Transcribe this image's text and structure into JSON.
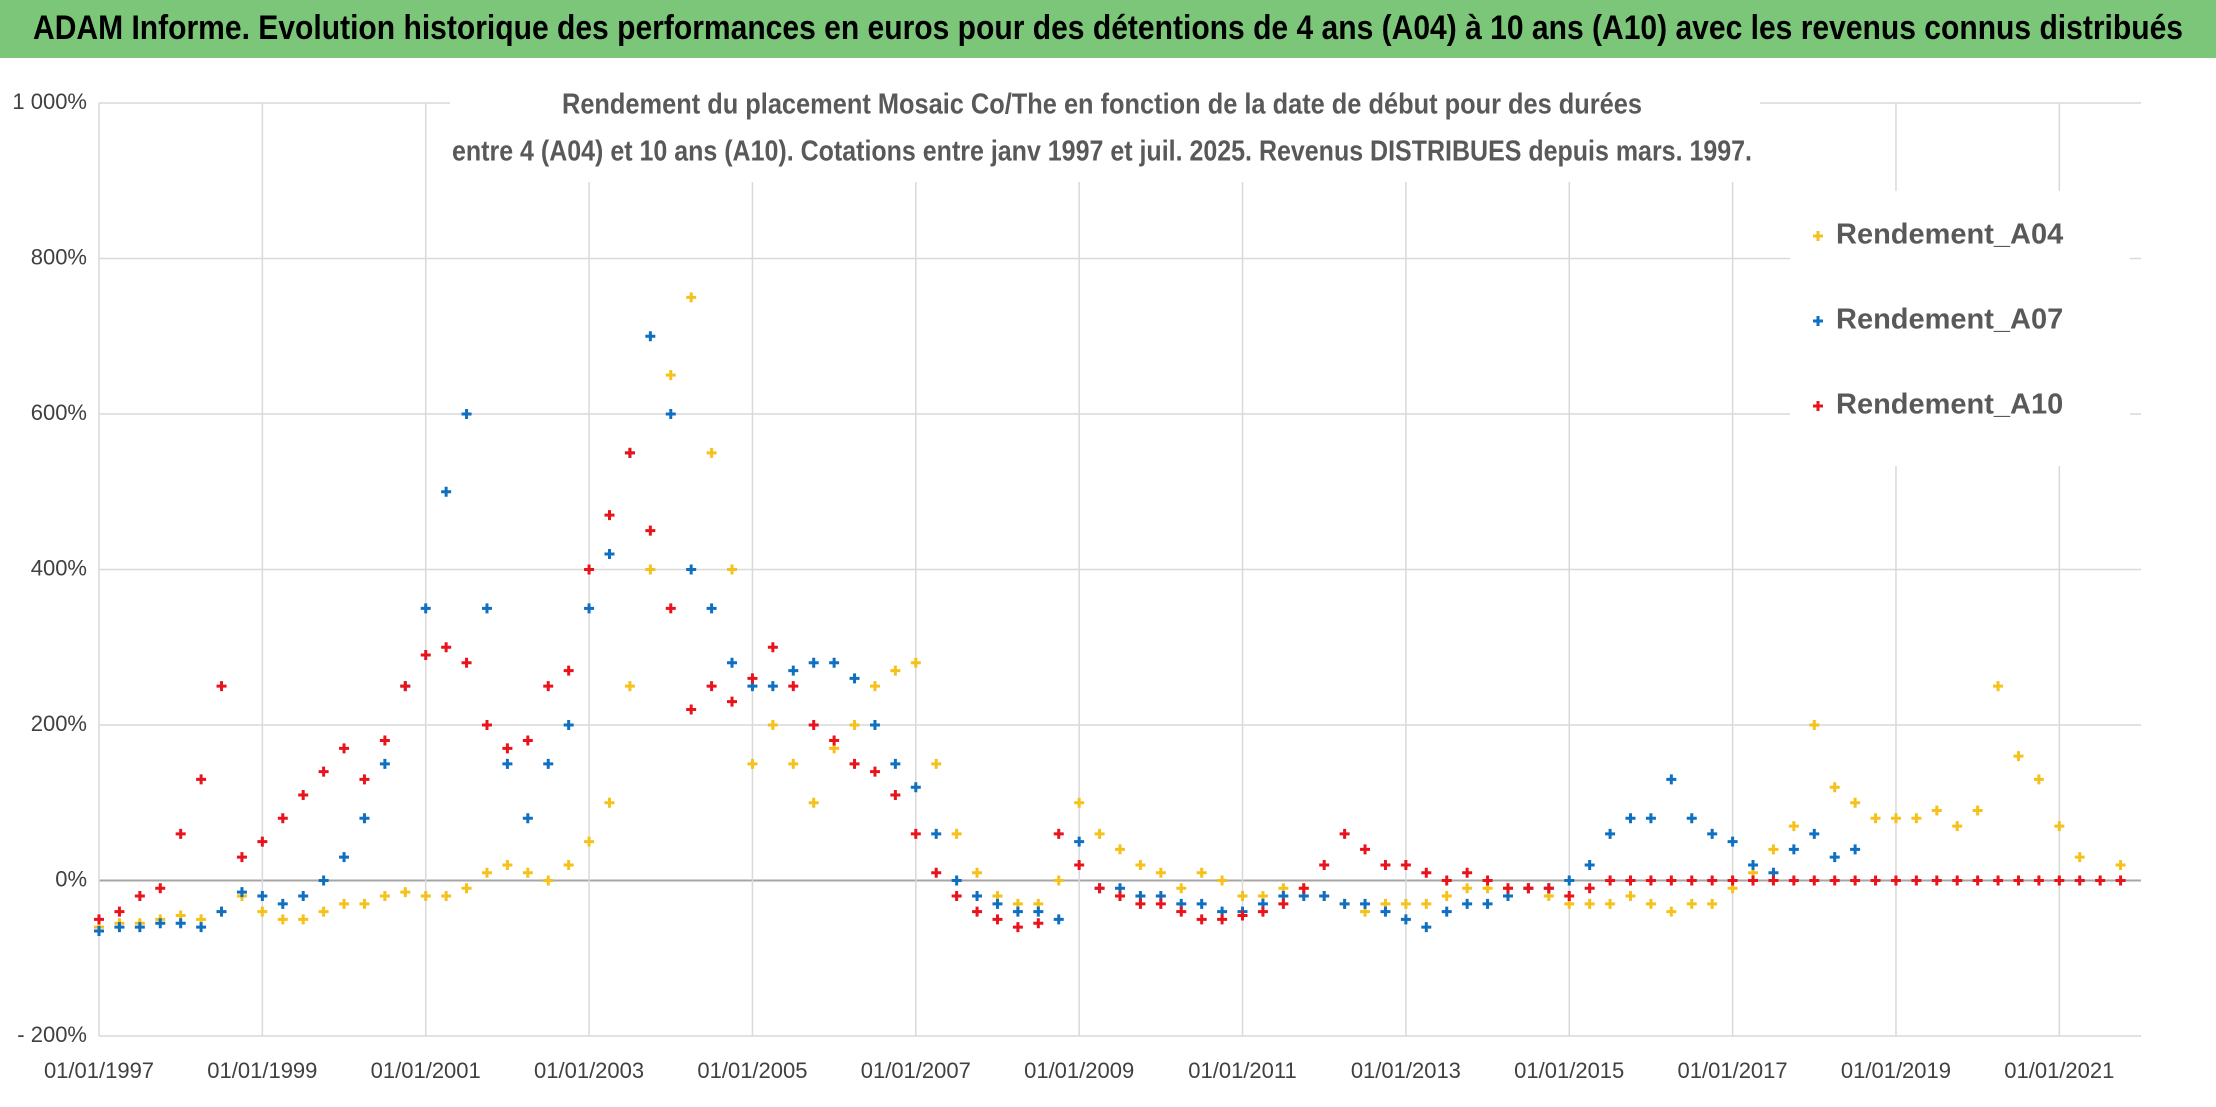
{
  "chart_data": {
    "type": "scatter",
    "title": "ADAM Informe. Evolution historique des performances en euros pour des détentions de 4 ans (A04) à 10 ans (A10) avec les revenus connus distribués",
    "subtitle": [
      "Rendement du placement Mosaic Co/The en fonction de la date de début pour des durées",
      "entre 4 (A04) et 10 ans (A10). Cotations entre janv 1997 et juil. 2025. Revenus DISTRIBUES depuis mars. 1997."
    ],
    "xlim": [
      "01/01/1997",
      "01/01/2022"
    ],
    "xticks": [
      "01/01/1997",
      "01/01/1999",
      "01/01/2001",
      "01/01/2003",
      "01/01/2005",
      "01/01/2007",
      "01/01/2009",
      "01/01/2011",
      "01/01/2013",
      "01/01/2015",
      "01/01/2017",
      "01/01/2019",
      "01/01/2021"
    ],
    "ylim": [
      -200,
      1000
    ],
    "yticks": [
      {
        "value": -200,
        "label": "- 200%"
      },
      {
        "value": 0,
        "label": "0%"
      },
      {
        "value": 200,
        "label": "200%"
      },
      {
        "value": 400,
        "label": "400%"
      },
      {
        "value": 600,
        "label": "600%"
      },
      {
        "value": 800,
        "label": "800%"
      },
      {
        "value": 1000,
        "label": "1 000%"
      }
    ],
    "grid": true,
    "legend": "upper right",
    "series": [
      {
        "name": "Rendement_A04",
        "color": "#f5c21b",
        "x": [
          "01/01/1997",
          "01/04/1997",
          "01/07/1997",
          "01/10/1997",
          "01/01/1998",
          "01/04/1998",
          "01/07/1998",
          "01/10/1998",
          "01/01/1999",
          "01/04/1999",
          "01/07/1999",
          "01/10/1999",
          "01/01/2000",
          "01/04/2000",
          "01/07/2000",
          "01/10/2000",
          "01/01/2001",
          "01/04/2001",
          "01/07/2001",
          "01/10/2001",
          "01/01/2002",
          "01/04/2002",
          "01/07/2002",
          "01/10/2002",
          "01/01/2003",
          "01/04/2003",
          "01/07/2003",
          "01/10/2003",
          "01/01/2004",
          "01/04/2004",
          "01/07/2004",
          "01/10/2004",
          "01/01/2005",
          "01/04/2005",
          "01/07/2005",
          "01/10/2005",
          "01/01/2006",
          "01/04/2006",
          "01/07/2006",
          "01/10/2006",
          "01/01/2007",
          "01/04/2007",
          "01/07/2007",
          "01/10/2007",
          "01/01/2008",
          "01/04/2008",
          "01/07/2008",
          "01/10/2008",
          "01/01/2009",
          "01/04/2009",
          "01/07/2009",
          "01/10/2009",
          "01/01/2010",
          "01/04/2010",
          "01/07/2010",
          "01/10/2010",
          "01/01/2011",
          "01/04/2011",
          "01/07/2011",
          "01/10/2011",
          "01/01/2012",
          "01/04/2012",
          "01/07/2012",
          "01/10/2012",
          "01/01/2013",
          "01/04/2013",
          "01/07/2013",
          "01/10/2013",
          "01/01/2014",
          "01/04/2014",
          "01/07/2014",
          "01/10/2014",
          "01/01/2015",
          "01/04/2015",
          "01/07/2015",
          "01/10/2015",
          "01/01/2016",
          "01/04/2016",
          "01/07/2016",
          "01/10/2016",
          "01/01/2017",
          "01/04/2017",
          "01/07/2017",
          "01/10/2017",
          "01/01/2018",
          "01/04/2018",
          "01/07/2018",
          "01/10/2018",
          "01/01/2019",
          "01/04/2019",
          "01/07/2019",
          "01/10/2019",
          "01/01/2020",
          "01/04/2020",
          "01/07/2020",
          "01/10/2020",
          "01/01/2021",
          "01/04/2021",
          "01/07/2021",
          "01/10/2021"
        ],
        "values": [
          -60,
          -55,
          -55,
          -50,
          -45,
          -50,
          -40,
          -20,
          -40,
          -50,
          -50,
          -40,
          -30,
          -30,
          -20,
          -15,
          -20,
          -20,
          -10,
          10,
          20,
          10,
          0,
          20,
          50,
          100,
          250,
          400,
          650,
          750,
          550,
          400,
          150,
          200,
          150,
          100,
          170,
          200,
          250,
          270,
          280,
          150,
          60,
          10,
          -20,
          -30,
          -30,
          0,
          100,
          60,
          40,
          20,
          10,
          -10,
          10,
          0,
          -20,
          -20,
          -10,
          -10,
          -20,
          -30,
          -40,
          -30,
          -30,
          -30,
          -20,
          -10,
          -10,
          -10,
          -10,
          -20,
          -30,
          -30,
          -30,
          -20,
          -30,
          -40,
          -30,
          -30,
          -10,
          10,
          40,
          70,
          200,
          120,
          100,
          80,
          80,
          80,
          90,
          70,
          90,
          250,
          160,
          130,
          70,
          30,
          0,
          20
        ]
      },
      {
        "name": "Rendement_A07",
        "color": "#0f6fc0",
        "x": [
          "01/01/1997",
          "01/04/1997",
          "01/07/1997",
          "01/10/1997",
          "01/01/1998",
          "01/04/1998",
          "01/07/1998",
          "01/10/1998",
          "01/01/1999",
          "01/04/1999",
          "01/07/1999",
          "01/10/1999",
          "01/01/2000",
          "01/04/2000",
          "01/07/2000",
          "01/10/2000",
          "01/01/2001",
          "01/04/2001",
          "01/07/2001",
          "01/10/2001",
          "01/01/2002",
          "01/04/2002",
          "01/07/2002",
          "01/10/2002",
          "01/01/2003",
          "01/04/2003",
          "01/07/2003",
          "01/10/2003",
          "01/01/2004",
          "01/04/2004",
          "01/07/2004",
          "01/10/2004",
          "01/01/2005",
          "01/04/2005",
          "01/07/2005",
          "01/10/2005",
          "01/01/2006",
          "01/04/2006",
          "01/07/2006",
          "01/10/2006",
          "01/01/2007",
          "01/04/2007",
          "01/07/2007",
          "01/10/2007",
          "01/01/2008",
          "01/04/2008",
          "01/07/2008",
          "01/10/2008",
          "01/01/2009",
          "01/04/2009",
          "01/07/2009",
          "01/10/2009",
          "01/01/2010",
          "01/04/2010",
          "01/07/2010",
          "01/10/2010",
          "01/01/2011",
          "01/04/2011",
          "01/07/2011",
          "01/10/2011",
          "01/01/2012",
          "01/04/2012",
          "01/07/2012",
          "01/10/2012",
          "01/01/2013",
          "01/04/2013",
          "01/07/2013",
          "01/10/2013",
          "01/01/2014",
          "01/04/2014",
          "01/07/2014",
          "01/10/2014",
          "01/01/2015",
          "01/04/2015",
          "01/07/2015",
          "01/10/2015",
          "01/01/2016",
          "01/04/2016",
          "01/07/2016",
          "01/10/2016",
          "01/01/2017",
          "01/04/2017",
          "01/07/2017",
          "01/10/2017",
          "01/01/2018",
          "01/04/2018",
          "01/07/2018"
        ],
        "values": [
          -65,
          -60,
          -60,
          -55,
          -55,
          -60,
          -40,
          -15,
          -20,
          -30,
          -20,
          0,
          30,
          80,
          150,
          250,
          350,
          500,
          600,
          350,
          150,
          80,
          150,
          200,
          350,
          420,
          550,
          700,
          600,
          400,
          350,
          280,
          250,
          250,
          270,
          280,
          280,
          260,
          200,
          150,
          120,
          60,
          0,
          -20,
          -30,
          -40,
          -40,
          -50,
          50,
          -10,
          -10,
          -20,
          -20,
          -30,
          -30,
          -40,
          -40,
          -30,
          -20,
          -20,
          -20,
          -30,
          -30,
          -40,
          -50,
          -60,
          -40,
          -30,
          -30,
          -20,
          -10,
          -10,
          0,
          20,
          60,
          80,
          80,
          130,
          80,
          60,
          50,
          20,
          10,
          40,
          60,
          30,
          40
        ]
      },
      {
        "name": "Rendement_A10",
        "color": "#e8131b",
        "x": [
          "01/01/1997",
          "01/04/1997",
          "01/07/1997",
          "01/10/1997",
          "01/01/1998",
          "01/04/1998",
          "01/07/1998",
          "01/10/1998",
          "01/01/1999",
          "01/04/1999",
          "01/07/1999",
          "01/10/1999",
          "01/01/2000",
          "01/04/2000",
          "01/07/2000",
          "01/10/2000",
          "01/01/2001",
          "01/04/2001",
          "01/07/2001",
          "01/10/2001",
          "01/01/2002",
          "01/04/2002",
          "01/07/2002",
          "01/10/2002",
          "01/01/2003",
          "01/04/2003",
          "01/07/2003",
          "01/10/2003",
          "01/01/2004",
          "01/04/2004",
          "01/07/2004",
          "01/10/2004",
          "01/01/2005",
          "01/04/2005",
          "01/07/2005",
          "01/10/2005",
          "01/01/2006",
          "01/04/2006",
          "01/07/2006",
          "01/10/2006",
          "01/01/2007",
          "01/04/2007",
          "01/07/2007",
          "01/10/2007",
          "01/01/2008",
          "01/04/2008",
          "01/07/2008",
          "01/10/2008",
          "01/01/2009",
          "01/04/2009",
          "01/07/2009",
          "01/10/2009",
          "01/01/2010",
          "01/04/2010",
          "01/07/2010",
          "01/10/2010",
          "01/01/2011",
          "01/04/2011",
          "01/07/2011",
          "01/10/2011",
          "01/01/2012",
          "01/04/2012",
          "01/07/2012",
          "01/10/2012",
          "01/01/2013",
          "01/04/2013",
          "01/07/2013",
          "01/10/2013",
          "01/01/2014",
          "01/04/2014",
          "01/07/2014",
          "01/10/2014",
          "01/01/2015",
          "01/04/2015",
          "01/07/2015",
          "01/10/2015",
          "01/01/2016",
          "01/04/2016",
          "01/07/2016",
          "01/10/2016",
          "01/01/2017",
          "01/04/2017",
          "01/07/2017",
          "01/10/2017",
          "01/01/2018",
          "01/04/2018",
          "01/07/2018",
          "01/10/2018",
          "01/01/2019",
          "01/04/2019",
          "01/07/2019",
          "01/10/2019",
          "01/01/2020",
          "01/04/2020",
          "01/07/2020",
          "01/10/2020",
          "01/01/2021",
          "01/04/2021",
          "01/07/2021",
          "01/10/2021"
        ],
        "values": [
          -50,
          -40,
          -20,
          -10,
          60,
          130,
          250,
          30,
          50,
          80,
          110,
          140,
          170,
          130,
          180,
          250,
          290,
          300,
          280,
          200,
          170,
          180,
          250,
          270,
          400,
          470,
          550,
          450,
          350,
          220,
          250,
          230,
          260,
          300,
          250,
          200,
          180,
          150,
          140,
          110,
          60,
          10,
          -20,
          -40,
          -50,
          -60,
          -55,
          60,
          20,
          -10,
          -20,
          -30,
          -30,
          -40,
          -50,
          -50,
          -45,
          -40,
          -30,
          -10,
          20,
          60,
          40,
          20,
          20,
          10,
          0,
          10,
          0,
          -10,
          -10,
          -10,
          -20,
          -10,
          0,
          0,
          0,
          0,
          0,
          0,
          0,
          0,
          0,
          0,
          0,
          0,
          0,
          0,
          0,
          0,
          0,
          0,
          0,
          0,
          0,
          0,
          0,
          0,
          0,
          0
        ]
      }
    ]
  }
}
